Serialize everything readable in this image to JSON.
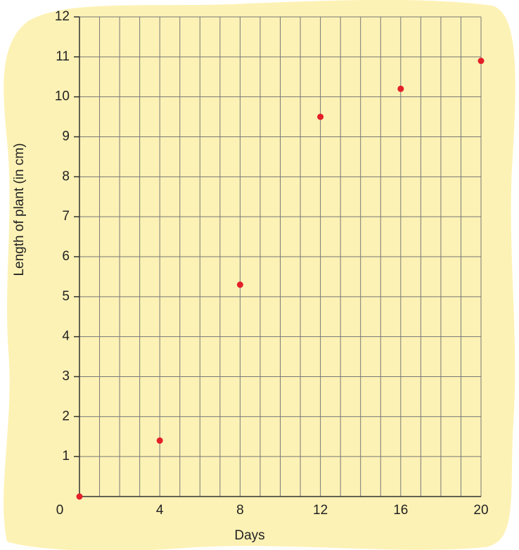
{
  "chart_data": {
    "type": "scatter",
    "x_label": "Days",
    "y_label": "Length of plant (in cm)",
    "x": [
      0,
      4,
      8,
      12,
      16,
      20
    ],
    "values": [
      0,
      1.4,
      5.3,
      9.5,
      10.2,
      10.9
    ],
    "color": "#e3202a",
    "xlim": [
      0,
      20
    ],
    "xticks": [
      0,
      4,
      8,
      12,
      16,
      20
    ],
    "x_minor_ticks": [
      1,
      2,
      3,
      5,
      6,
      7,
      9,
      10,
      11,
      13,
      14,
      15,
      17,
      18,
      19
    ],
    "ylim": [
      0,
      12
    ],
    "yticks": [
      1,
      2,
      3,
      4,
      5,
      6,
      7,
      8,
      9,
      10,
      11,
      12
    ],
    "grid": true
  }
}
